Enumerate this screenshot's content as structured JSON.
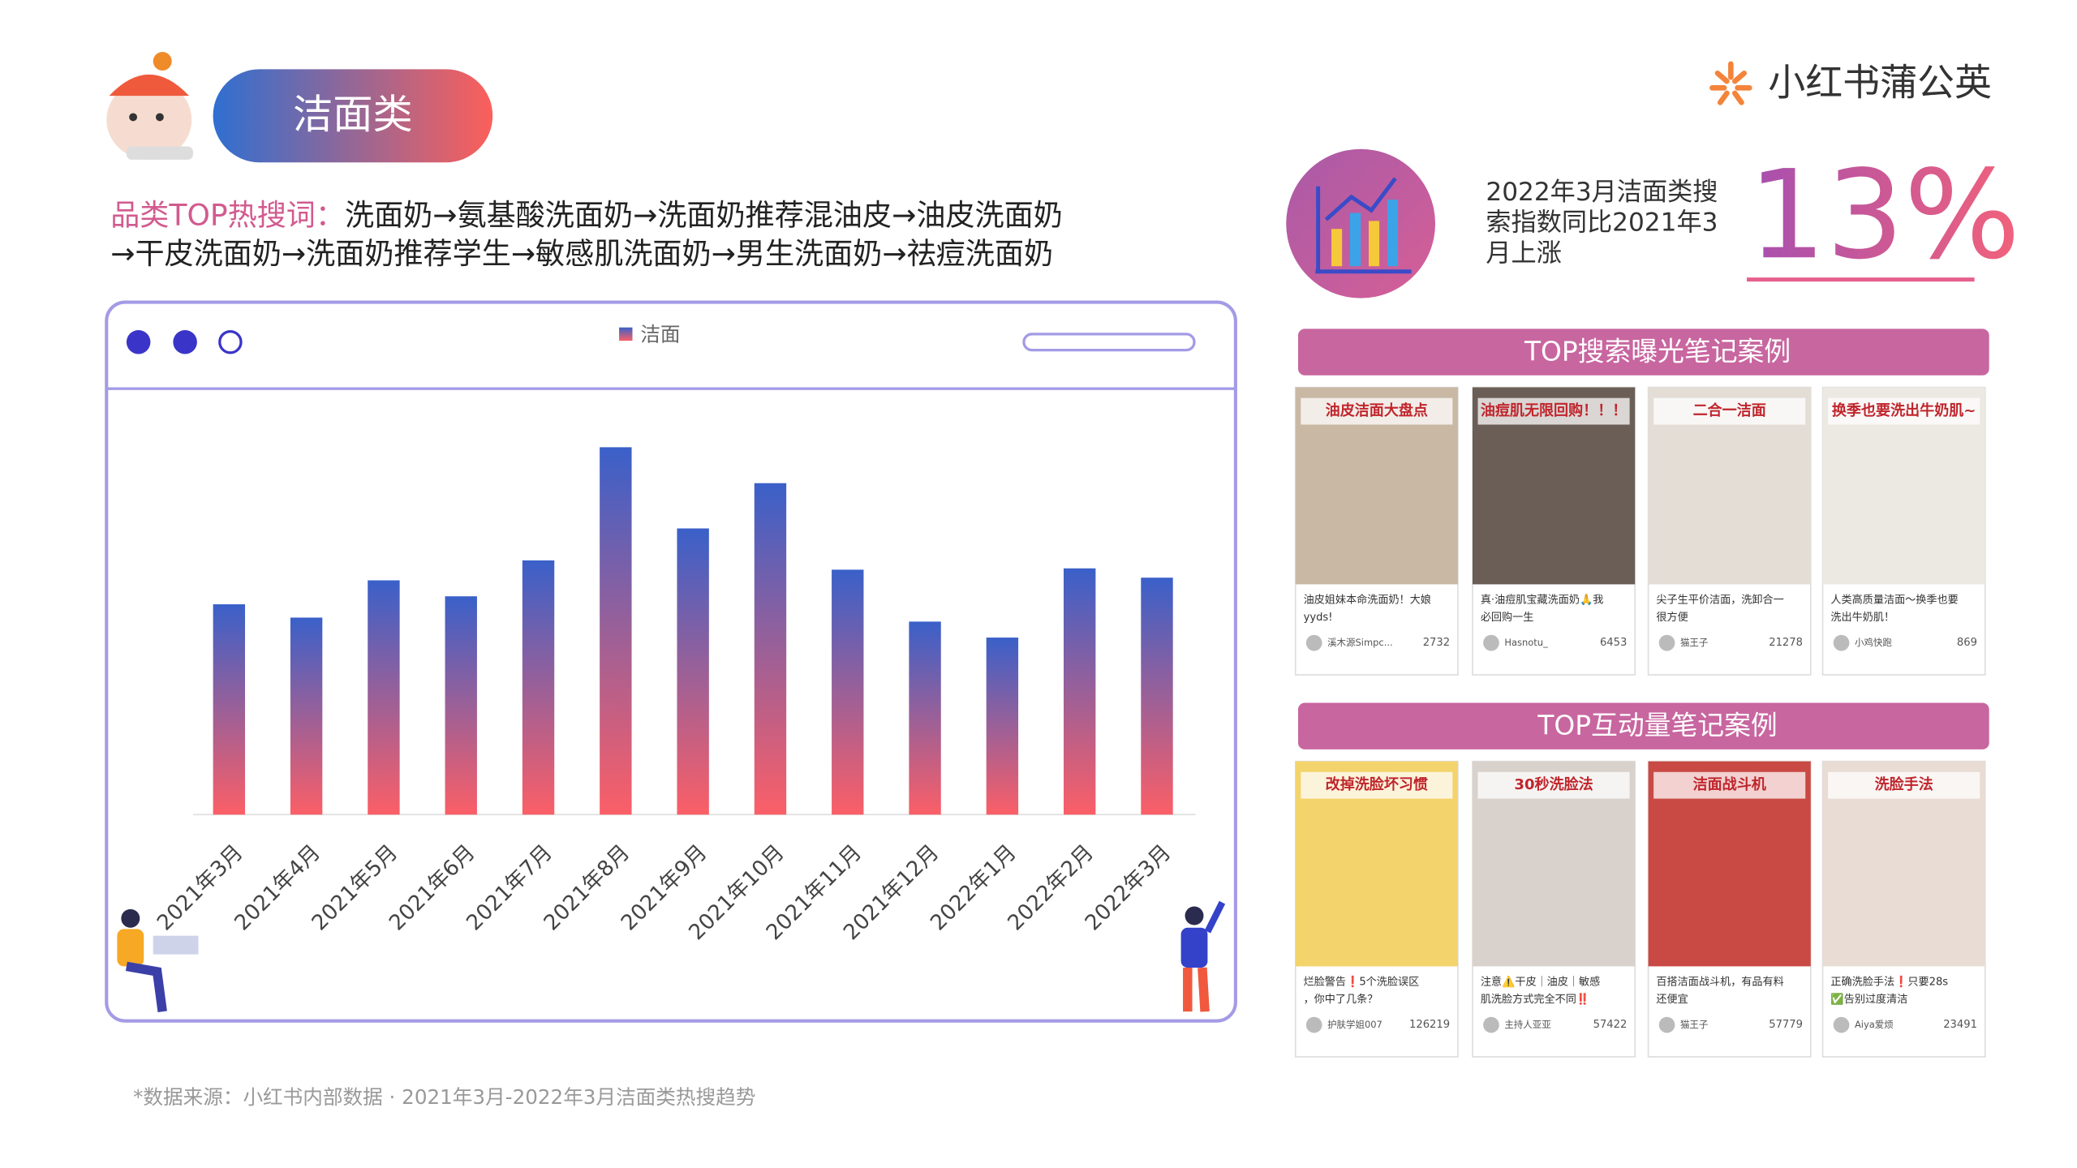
{
  "header": {
    "title": "洁面类",
    "logo": "小红书蒲公英"
  },
  "keywords": {
    "label": "品类TOP热搜词：",
    "lines": [
      "洗面奶→氨基酸洗面奶→洗面奶推荐混油皮→油皮洗面奶",
      "→干皮洗面奶→洗面奶推荐学生→敏感肌洗面奶→男生洗面奶→祛痘洗面奶"
    ]
  },
  "chart_data": {
    "type": "bar",
    "categories": [
      "2021年3月",
      "2021年4月",
      "2021年5月",
      "2021年6月",
      "2021年7月",
      "2021年8月",
      "2021年9月",
      "2021年10月",
      "2021年11月",
      "2021年12月",
      "2022年1月",
      "2022年2月",
      "2022年3月"
    ],
    "series": [
      {
        "name": "洁面",
        "gradient": [
          "#3a60c9",
          "#fb5f67"
        ],
        "values": [
          158,
          148,
          176,
          164,
          191,
          276,
          215,
          249,
          184,
          145,
          133,
          185,
          178
        ]
      }
    ],
    "ylim": [
      0,
      317
    ],
    "grid": false
  },
  "stat": {
    "lines": [
      "2022年3月洁面类搜",
      "索指数同比2021年3",
      "月上涨"
    ],
    "value": "13%"
  },
  "top_search_cases": {
    "title": "TOP搜索曝光笔记案例",
    "cards": [
      {
        "overlay": "油皮洁面大盘点",
        "caption": [
          "油皮姐妹本命洗面奶！大娘",
          "yyds!"
        ],
        "author": "溪木源Simpc...",
        "likes": "2732"
      },
      {
        "overlay": "油痘肌无限回购！！！",
        "caption": [
          "真·油痘肌宝藏洗面奶🙏我",
          "必回购一生"
        ],
        "author": "Hasnotu_",
        "likes": "6453"
      },
      {
        "overlay": "二合一洁面",
        "caption": [
          "尖子生平价洁面，洗卸合一",
          "很方便"
        ],
        "author": "猫王子",
        "likes": "21278"
      },
      {
        "overlay": "换季也要洗出牛奶肌~",
        "caption": [
          "人类高质量洁面～换季也要",
          "洗出牛奶肌！"
        ],
        "author": "小鸡快跑",
        "likes": "869"
      }
    ]
  },
  "top_interaction_cases": {
    "title": "TOP互动量笔记案例",
    "cards": [
      {
        "overlay": "改掉洗脸坏习惯",
        "caption": [
          "烂脸警告❗5个洗脸误区",
          "，你中了几条？"
        ],
        "author": "护肤学姐007",
        "likes": "126219"
      },
      {
        "overlay": "30秒洗脸法",
        "caption": [
          "注意⚠️干皮｜油皮｜敏感",
          "肌洗脸方式完全不同‼️"
        ],
        "author": "主持人亚亚",
        "likes": "57422"
      },
      {
        "overlay": "洁面战斗机",
        "caption": [
          "百搭洁面战斗机，有品有料",
          "还便宜"
        ],
        "author": "猫王子",
        "likes": "57779"
      },
      {
        "overlay": "洗脸手法",
        "caption": [
          "正确洗脸手法❗只要28s",
          "✅告别过度清洁"
        ],
        "author": "Aiya爱烦",
        "likes": "23491"
      }
    ]
  },
  "footnote": "*数据来源：小红书内部数据 · 2021年3月-2022年3月洁面类热搜趋势"
}
